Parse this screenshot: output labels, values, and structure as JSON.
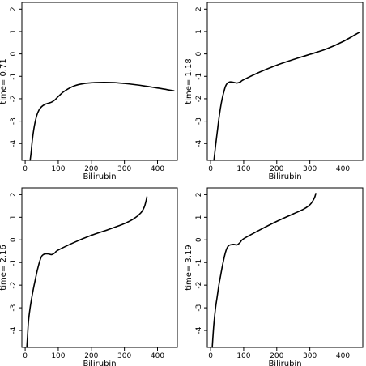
{
  "chart_data": [
    {
      "type": "line",
      "xlabel": "Bilirubin",
      "ylabel": "time= 0.71",
      "xlim": [
        -10,
        460
      ],
      "ylim": [
        -4.75,
        2.3
      ],
      "xticks": [
        0,
        100,
        200,
        300,
        400
      ],
      "yticks": [
        -4,
        -3,
        -2,
        -1,
        0,
        1,
        2
      ],
      "series": [
        {
          "x": [
            15,
            18,
            22,
            28,
            35,
            42,
            50,
            60,
            70,
            80,
            90,
            100,
            120,
            150,
            180,
            210,
            240,
            270,
            300,
            330,
            360,
            390,
            420,
            450
          ],
          "values": [
            -4.75,
            -4.4,
            -3.8,
            -3.2,
            -2.75,
            -2.5,
            -2.35,
            -2.25,
            -2.2,
            -2.15,
            -2.05,
            -1.9,
            -1.65,
            -1.42,
            -1.32,
            -1.28,
            -1.27,
            -1.28,
            -1.32,
            -1.37,
            -1.43,
            -1.5,
            -1.57,
            -1.65
          ]
        }
      ]
    },
    {
      "type": "line",
      "xlabel": "Bilirubin",
      "ylabel": "time= 1.18",
      "xlim": [
        -10,
        460
      ],
      "ylim": [
        -4.75,
        2.3
      ],
      "xticks": [
        0,
        100,
        200,
        300,
        400
      ],
      "yticks": [
        -4,
        -3,
        -2,
        -1,
        0,
        1,
        2
      ],
      "series": [
        {
          "x": [
            10,
            12,
            15,
            20,
            25,
            30,
            35,
            40,
            45,
            50,
            55,
            60,
            70,
            80,
            90,
            100,
            150,
            200,
            250,
            300,
            350,
            400,
            450
          ],
          "values": [
            -4.75,
            -4.5,
            -4.1,
            -3.5,
            -2.9,
            -2.4,
            -2.0,
            -1.7,
            -1.45,
            -1.32,
            -1.27,
            -1.25,
            -1.27,
            -1.3,
            -1.25,
            -1.15,
            -0.8,
            -0.5,
            -0.25,
            -0.02,
            0.22,
            0.55,
            0.97
          ]
        }
      ]
    },
    {
      "type": "line",
      "xlabel": "Bilirubin",
      "ylabel": "time= 2.16",
      "xlim": [
        -10,
        460
      ],
      "ylim": [
        -4.75,
        2.3
      ],
      "xticks": [
        0,
        100,
        200,
        300,
        400
      ],
      "yticks": [
        -4,
        -3,
        -2,
        -1,
        0,
        1,
        2
      ],
      "series": [
        {
          "x": [
            5,
            7,
            10,
            15,
            20,
            25,
            30,
            35,
            40,
            45,
            50,
            55,
            60,
            70,
            80,
            90,
            100,
            150,
            200,
            250,
            300,
            330,
            350,
            360,
            365,
            368
          ],
          "values": [
            -4.75,
            -4.3,
            -3.6,
            -3.0,
            -2.55,
            -2.15,
            -1.8,
            -1.45,
            -1.15,
            -0.9,
            -0.72,
            -0.65,
            -0.62,
            -0.62,
            -0.65,
            -0.57,
            -0.45,
            -0.1,
            0.2,
            0.45,
            0.72,
            0.95,
            1.2,
            1.45,
            1.7,
            1.9
          ]
        }
      ]
    },
    {
      "type": "line",
      "xlabel": "Bilirubin",
      "ylabel": "time= 3.19",
      "xlim": [
        -10,
        460
      ],
      "ylim": [
        -4.75,
        2.3
      ],
      "xticks": [
        0,
        100,
        200,
        300,
        400
      ],
      "yticks": [
        -4,
        -3,
        -2,
        -1,
        0,
        1,
        2
      ],
      "series": [
        {
          "x": [
            5,
            7,
            10,
            15,
            20,
            25,
            30,
            35,
            40,
            45,
            50,
            55,
            60,
            70,
            80,
            90,
            100,
            150,
            200,
            250,
            280,
            300,
            310,
            315,
            318
          ],
          "values": [
            -4.75,
            -4.3,
            -3.7,
            -3.0,
            -2.5,
            -2.0,
            -1.6,
            -1.2,
            -0.85,
            -0.55,
            -0.35,
            -0.25,
            -0.22,
            -0.2,
            -0.22,
            -0.1,
            0.05,
            0.45,
            0.82,
            1.15,
            1.35,
            1.55,
            1.75,
            1.9,
            2.05
          ]
        }
      ]
    }
  ]
}
